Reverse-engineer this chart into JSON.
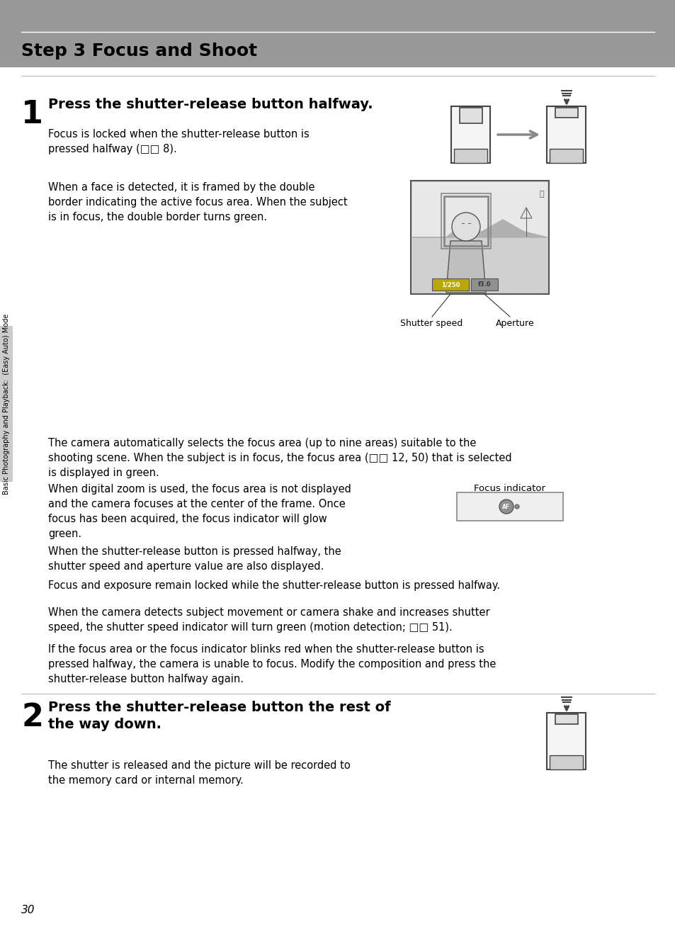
{
  "title": "Step 3 Focus and Shoot",
  "title_bg_color": "#999999",
  "title_text_color": "#000000",
  "page_bg_color": "#ffffff",
  "sidebar_color": "#cccccc",
  "sidebar_text": "Basic Photography and Playback:  (Easy Auto) Mode",
  "page_number": "30",
  "step1_number": "1",
  "step1_title": "Press the shutter-release button halfway.",
  "step1_para1": "Focus is locked when the shutter-release button is\npressed halfway (□□ 8).",
  "step1_para2": "When a face is detected, it is framed by the double\nborder indicating the active focus area. When the subject\nis in focus, the double border turns green.",
  "step1_para3": "The camera automatically selects the focus area (up to nine areas) suitable to the\nshooting scene. When the subject is in focus, the focus area (□□ 12, 50) that is selected\nis displayed in green.",
  "step1_para4": "When digital zoom is used, the focus area is not displayed\nand the camera focuses at the center of the frame. Once\nfocus has been acquired, the focus indicator will glow\ngreen.",
  "step1_para5": "When the shutter-release button is pressed halfway, the\nshutter speed and aperture value are also displayed.",
  "step1_para6": "Focus and exposure remain locked while the shutter-release button is pressed halfway.",
  "step1_para7": "When the camera detects subject movement or camera shake and increases shutter\nspeed, the shutter speed indicator will turn green (motion detection; □□ 51).",
  "step1_para8": "If the focus area or the focus indicator blinks red when the shutter-release button is\npressed halfway, the camera is unable to focus. Modify the composition and press the\nshutter-release button halfway again.",
  "step2_number": "2",
  "step2_title": "Press the shutter-release button the rest of\nthe way down.",
  "step2_para1": "The shutter is released and the picture will be recorded to\nthe memory card or internal memory.",
  "focus_indicator_label": "Focus indicator",
  "shutter_speed_label": "Shutter speed",
  "aperture_label": "Aperture",
  "separator_color": "#bbbbbb",
  "text_color": "#000000",
  "body_fontsize": 10.5,
  "title_fontsize": 16
}
